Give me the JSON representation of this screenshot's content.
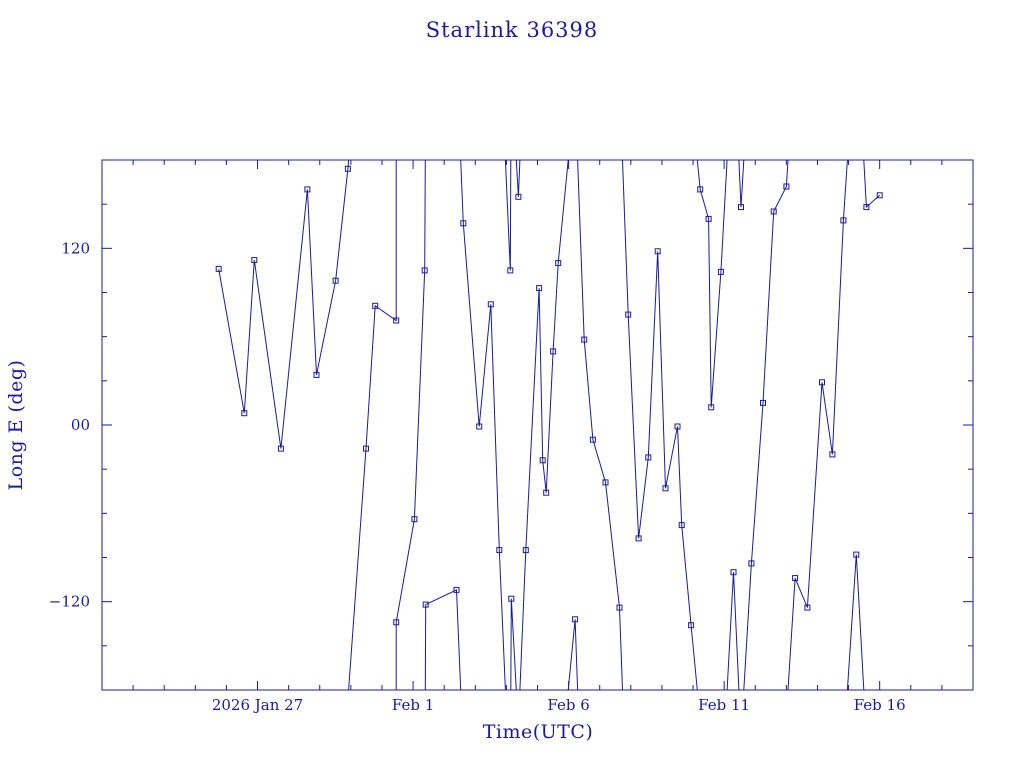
{
  "chart_data": {
    "type": "line",
    "title": "Starlink 36398",
    "xlabel": "Time(UTC)",
    "ylabel": "Long E (deg)",
    "color": "#1a1aa0",
    "ylim": [
      -180,
      180
    ],
    "xlim_days": [
      "2026-01-22T00:00",
      "2026-02-19T00:00"
    ],
    "x_ticks": [
      {
        "label": "2026 Jan 27",
        "date": "2026-01-27"
      },
      {
        "label": "Feb  1",
        "date": "2026-02-01"
      },
      {
        "label": "Feb  6",
        "date": "2026-02-06"
      },
      {
        "label": "Feb 11",
        "date": "2026-02-11"
      },
      {
        "label": "Feb 16",
        "date": "2026-02-16"
      }
    ],
    "y_ticks": [
      {
        "label": "120",
        "value": 120
      },
      {
        "label": "00",
        "value": 0
      },
      {
        "label": "−120",
        "value": -120
      }
    ],
    "grid": false,
    "series": [
      {
        "x": [
          "2026-01-25T18:00",
          "2026-01-26T13:45",
          "2026-01-26T21:30",
          "2026-01-27T18:00",
          "2026-01-28T14:30",
          "2026-01-28T21:30",
          "2026-01-29T12:15",
          "2026-01-29T21:45",
          "2026-01-30T11:40",
          "2026-01-30T18:45",
          "2026-01-31T11:00",
          "2026-01-31T11:00",
          "2026-02-01T01:00",
          "2026-02-01T09:00",
          "2026-02-01T09:45",
          "2026-02-02T09:30",
          "2026-02-02T14:45",
          "2026-02-03T03:00",
          "2026-02-03T12:00",
          "2026-02-03T18:30",
          "2026-02-04T03:00",
          "2026-02-04T03:45",
          "2026-02-04T09:15",
          "2026-02-04T15:00",
          "2026-02-05T01:15",
          "2026-02-05T04:00",
          "2026-02-05T06:45",
          "2026-02-05T12:00",
          "2026-02-05T16:00",
          "2026-02-06T05:00",
          "2026-02-06T12:00",
          "2026-02-06T18:45",
          "2026-02-07T04:30",
          "2026-02-07T15:15",
          "2026-02-07T22:00",
          "2026-02-08T06:00",
          "2026-02-08T13:30",
          "2026-02-08T20:45",
          "2026-02-09T02:45",
          "2026-02-09T12:00",
          "2026-02-09T15:15",
          "2026-02-09T22:30",
          "2026-02-10T05:30",
          "2026-02-10T12:00",
          "2026-02-10T14:00",
          "2026-02-10T21:30",
          "2026-02-11T07:15",
          "2026-02-11T13:00",
          "2026-02-11T21:00",
          "2026-02-12T06:00",
          "2026-02-12T14:15",
          "2026-02-13T00:00",
          "2026-02-13T06:45",
          "2026-02-13T16:15",
          "2026-02-14T03:30",
          "2026-02-14T11:30",
          "2026-02-14T20:00",
          "2026-02-15T06:00",
          "2026-02-15T13:45",
          "2026-02-16T00:00"
        ],
        "y": [
          106,
          8,
          112,
          -16,
          160,
          34,
          98,
          174,
          -16,
          81,
          71,
          -134,
          -64,
          105,
          -122,
          -112,
          137,
          -1,
          82,
          -85,
          105,
          -118,
          155,
          -85,
          93,
          -24,
          -46,
          50,
          110,
          -132,
          58,
          -10,
          -39,
          -124,
          75,
          -77,
          -22,
          118,
          -43,
          -1,
          -68,
          -136,
          160,
          140,
          12,
          104,
          -100,
          148,
          -94,
          15,
          145,
          162,
          -104,
          -124,
          29,
          -20,
          139,
          -88,
          148,
          156
        ]
      }
    ]
  }
}
